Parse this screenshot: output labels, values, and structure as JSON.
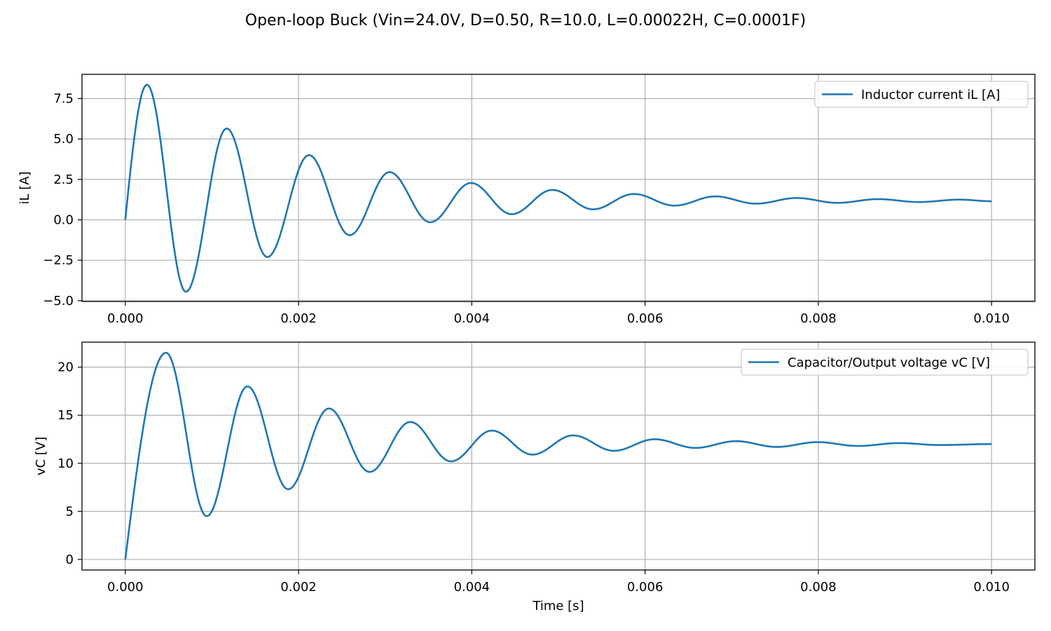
{
  "title": "Open-loop Buck (Vin=24.0V, D=0.50, R=10.0, L=0.00022H, C=0.0001F)",
  "line_color": "#1f77b4",
  "chart_data": [
    {
      "type": "line",
      "xlabel": "",
      "ylabel": "iL [A]",
      "xlim": [
        -0.0005,
        0.0105
      ],
      "ylim": [
        -5.05,
        9.0
      ],
      "xticks": [
        0.0,
        0.002,
        0.004,
        0.006,
        0.008,
        0.01
      ],
      "xtick_labels": [
        "0.000",
        "0.002",
        "0.004",
        "0.006",
        "0.008",
        "0.010"
      ],
      "yticks": [
        -5.0,
        -2.5,
        0.0,
        2.5,
        5.0,
        7.5
      ],
      "ytick_labels": [
        "−5.0",
        "−2.5",
        "0.0",
        "2.5",
        "5.0",
        "7.5"
      ],
      "grid": true,
      "legend_position": "upper right",
      "series": [
        {
          "name": "Inductor current iL [A]",
          "x": [
            0,
            0.00025,
            0.0007,
            0.00117,
            0.00164,
            0.00212,
            0.00259,
            0.00305,
            0.00352,
            0.00399,
            0.00446,
            0.00493,
            0.0054,
            0.00587,
            0.00634,
            0.00681,
            0.00728,
            0.00775,
            0.00822,
            0.00869,
            0.00916,
            0.00963,
            0.01
          ],
          "y": [
            0,
            8.35,
            -4.45,
            5.65,
            -2.3,
            4.0,
            -0.95,
            2.95,
            -0.15,
            2.28,
            0.35,
            1.85,
            0.65,
            1.6,
            0.88,
            1.45,
            1.0,
            1.35,
            1.05,
            1.28,
            1.1,
            1.25,
            1.15
          ]
        }
      ]
    },
    {
      "type": "line",
      "xlabel": "Time [s]",
      "ylabel": "vC [V]",
      "xlim": [
        -0.0005,
        0.0105
      ],
      "ylim": [
        -1.1,
        22.6
      ],
      "xticks": [
        0.0,
        0.002,
        0.004,
        0.006,
        0.008,
        0.01
      ],
      "xtick_labels": [
        "0.000",
        "0.002",
        "0.004",
        "0.006",
        "0.008",
        "0.010"
      ],
      "yticks": [
        0,
        5,
        10,
        15,
        20
      ],
      "ytick_labels": [
        "0",
        "5",
        "10",
        "15",
        "20"
      ],
      "grid": true,
      "legend_position": "upper right",
      "series": [
        {
          "name": "Capacitor/Output voltage vC [V]",
          "x": [
            0,
            0.00047,
            0.00094,
            0.00141,
            0.00188,
            0.00235,
            0.00282,
            0.00329,
            0.00376,
            0.00423,
            0.0047,
            0.00517,
            0.00564,
            0.00611,
            0.00658,
            0.00705,
            0.00752,
            0.00799,
            0.00846,
            0.00893,
            0.0094,
            0.01
          ],
          "y": [
            0,
            21.5,
            4.5,
            18.0,
            7.3,
            15.7,
            9.1,
            14.3,
            10.2,
            13.4,
            10.9,
            12.9,
            11.3,
            12.5,
            11.6,
            12.3,
            11.7,
            12.2,
            11.8,
            12.1,
            11.9,
            12.0
          ]
        }
      ]
    }
  ]
}
